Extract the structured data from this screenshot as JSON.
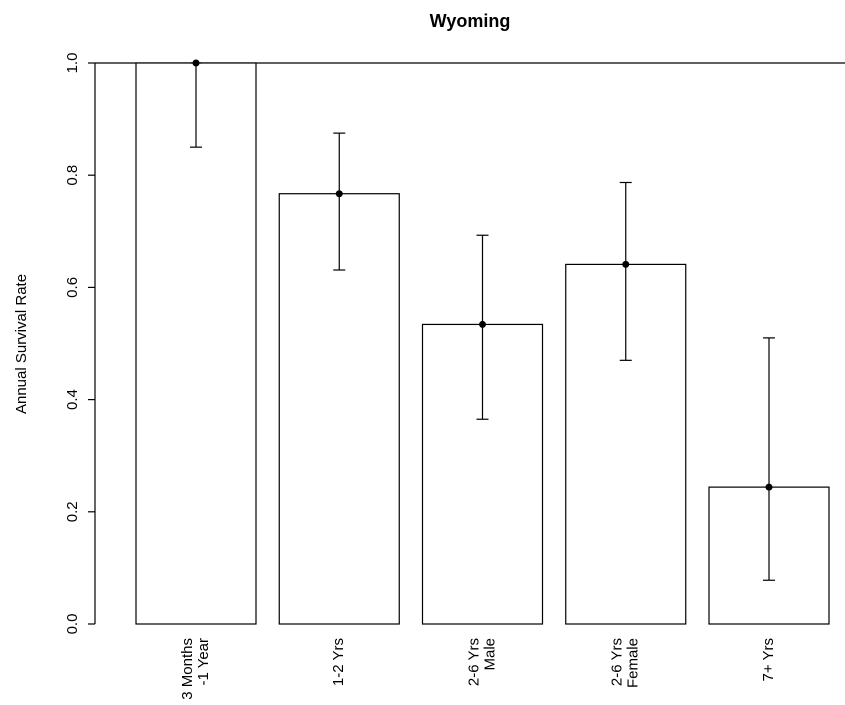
{
  "chart_data": {
    "type": "bar",
    "title": "Wyoming",
    "y_label": "Annual Survival Rate",
    "categories": [
      [
        "3 Months",
        "-1 Year"
      ],
      [
        "1-2 Yrs"
      ],
      [
        "2-6 Yrs",
        "Male"
      ],
      [
        "2-6 Yrs",
        "Female"
      ],
      [
        "7+ Yrs"
      ]
    ],
    "values": [
      1.0,
      0.767,
      0.534,
      0.641,
      0.244
    ],
    "lower": [
      0.85,
      0.631,
      0.365,
      0.47,
      0.078
    ],
    "upper": [
      1.0,
      0.875,
      0.693,
      0.787,
      0.51
    ],
    "color": "#ffffff",
    "ylim": [
      0,
      1
    ],
    "yticks": [
      {
        "value": 0,
        "label": "0.0"
      },
      {
        "value": 0.2,
        "label": "0.2"
      },
      {
        "value": 0.4,
        "label": "0.4"
      },
      {
        "value": 0.6,
        "label": "0.6"
      },
      {
        "value": 0.8,
        "label": "0.8"
      },
      {
        "value": 1,
        "label": "1.0"
      }
    ]
  }
}
